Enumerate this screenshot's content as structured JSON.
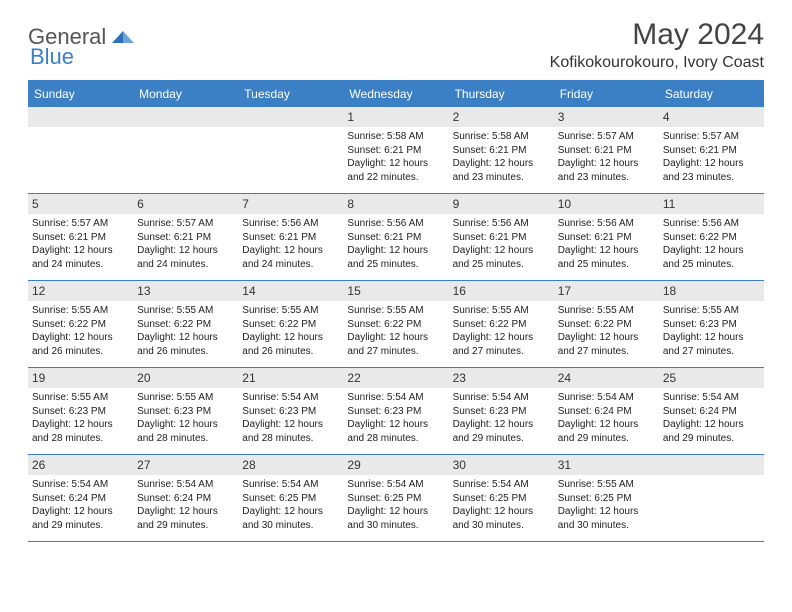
{
  "brand": {
    "word1": "General",
    "word2": "Blue"
  },
  "title": "May 2024",
  "location": "Kofikokourokouro, Ivory Coast",
  "colors": {
    "accent": "#3b7fc4",
    "daynum_bg": "#e9e9e9",
    "text": "#222222",
    "title": "#444444"
  },
  "weekdays": [
    "Sunday",
    "Monday",
    "Tuesday",
    "Wednesday",
    "Thursday",
    "Friday",
    "Saturday"
  ],
  "calendar": {
    "first_weekday_index": 3,
    "days": [
      {
        "n": 1,
        "sunrise": "5:58 AM",
        "sunset": "6:21 PM",
        "daylight": "12 hours and 22 minutes."
      },
      {
        "n": 2,
        "sunrise": "5:58 AM",
        "sunset": "6:21 PM",
        "daylight": "12 hours and 23 minutes."
      },
      {
        "n": 3,
        "sunrise": "5:57 AM",
        "sunset": "6:21 PM",
        "daylight": "12 hours and 23 minutes."
      },
      {
        "n": 4,
        "sunrise": "5:57 AM",
        "sunset": "6:21 PM",
        "daylight": "12 hours and 23 minutes."
      },
      {
        "n": 5,
        "sunrise": "5:57 AM",
        "sunset": "6:21 PM",
        "daylight": "12 hours and 24 minutes."
      },
      {
        "n": 6,
        "sunrise": "5:57 AM",
        "sunset": "6:21 PM",
        "daylight": "12 hours and 24 minutes."
      },
      {
        "n": 7,
        "sunrise": "5:56 AM",
        "sunset": "6:21 PM",
        "daylight": "12 hours and 24 minutes."
      },
      {
        "n": 8,
        "sunrise": "5:56 AM",
        "sunset": "6:21 PM",
        "daylight": "12 hours and 25 minutes."
      },
      {
        "n": 9,
        "sunrise": "5:56 AM",
        "sunset": "6:21 PM",
        "daylight": "12 hours and 25 minutes."
      },
      {
        "n": 10,
        "sunrise": "5:56 AM",
        "sunset": "6:21 PM",
        "daylight": "12 hours and 25 minutes."
      },
      {
        "n": 11,
        "sunrise": "5:56 AM",
        "sunset": "6:22 PM",
        "daylight": "12 hours and 25 minutes."
      },
      {
        "n": 12,
        "sunrise": "5:55 AM",
        "sunset": "6:22 PM",
        "daylight": "12 hours and 26 minutes."
      },
      {
        "n": 13,
        "sunrise": "5:55 AM",
        "sunset": "6:22 PM",
        "daylight": "12 hours and 26 minutes."
      },
      {
        "n": 14,
        "sunrise": "5:55 AM",
        "sunset": "6:22 PM",
        "daylight": "12 hours and 26 minutes."
      },
      {
        "n": 15,
        "sunrise": "5:55 AM",
        "sunset": "6:22 PM",
        "daylight": "12 hours and 27 minutes."
      },
      {
        "n": 16,
        "sunrise": "5:55 AM",
        "sunset": "6:22 PM",
        "daylight": "12 hours and 27 minutes."
      },
      {
        "n": 17,
        "sunrise": "5:55 AM",
        "sunset": "6:22 PM",
        "daylight": "12 hours and 27 minutes."
      },
      {
        "n": 18,
        "sunrise": "5:55 AM",
        "sunset": "6:23 PM",
        "daylight": "12 hours and 27 minutes."
      },
      {
        "n": 19,
        "sunrise": "5:55 AM",
        "sunset": "6:23 PM",
        "daylight": "12 hours and 28 minutes."
      },
      {
        "n": 20,
        "sunrise": "5:55 AM",
        "sunset": "6:23 PM",
        "daylight": "12 hours and 28 minutes."
      },
      {
        "n": 21,
        "sunrise": "5:54 AM",
        "sunset": "6:23 PM",
        "daylight": "12 hours and 28 minutes."
      },
      {
        "n": 22,
        "sunrise": "5:54 AM",
        "sunset": "6:23 PM",
        "daylight": "12 hours and 28 minutes."
      },
      {
        "n": 23,
        "sunrise": "5:54 AM",
        "sunset": "6:23 PM",
        "daylight": "12 hours and 29 minutes."
      },
      {
        "n": 24,
        "sunrise": "5:54 AM",
        "sunset": "6:24 PM",
        "daylight": "12 hours and 29 minutes."
      },
      {
        "n": 25,
        "sunrise": "5:54 AM",
        "sunset": "6:24 PM",
        "daylight": "12 hours and 29 minutes."
      },
      {
        "n": 26,
        "sunrise": "5:54 AM",
        "sunset": "6:24 PM",
        "daylight": "12 hours and 29 minutes."
      },
      {
        "n": 27,
        "sunrise": "5:54 AM",
        "sunset": "6:24 PM",
        "daylight": "12 hours and 29 minutes."
      },
      {
        "n": 28,
        "sunrise": "5:54 AM",
        "sunset": "6:25 PM",
        "daylight": "12 hours and 30 minutes."
      },
      {
        "n": 29,
        "sunrise": "5:54 AM",
        "sunset": "6:25 PM",
        "daylight": "12 hours and 30 minutes."
      },
      {
        "n": 30,
        "sunrise": "5:54 AM",
        "sunset": "6:25 PM",
        "daylight": "12 hours and 30 minutes."
      },
      {
        "n": 31,
        "sunrise": "5:55 AM",
        "sunset": "6:25 PM",
        "daylight": "12 hours and 30 minutes."
      }
    ]
  },
  "labels": {
    "sunrise_prefix": "Sunrise: ",
    "sunset_prefix": "Sunset: ",
    "daylight_prefix": "Daylight: "
  }
}
